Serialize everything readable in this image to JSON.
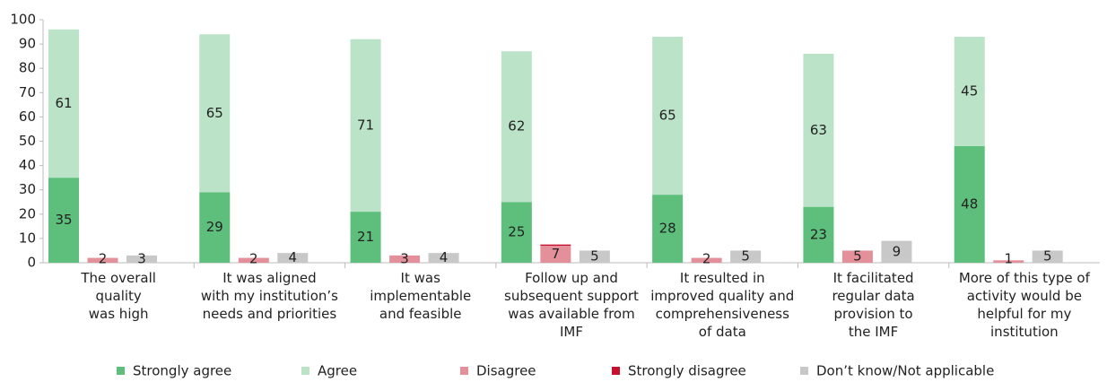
{
  "chart_data": {
    "type": "grouped_stacked_bar",
    "categories": [
      [
        "The overall",
        "quality",
        "was high"
      ],
      [
        "It was aligned",
        "with my institution’s",
        "needs and priorities"
      ],
      [
        "It was",
        "implementable",
        "and  feasible"
      ],
      [
        "Follow up and",
        "subsequent support",
        "was available from",
        "IMF"
      ],
      [
        "It resulted in",
        "improved quality and",
        "comprehensiveness",
        "of data"
      ],
      [
        "It facilitated",
        "regular data",
        "provision to",
        "the IMF"
      ],
      [
        "More of this type of",
        "activity would be",
        "helpful for my",
        "institution"
      ]
    ],
    "series": [
      {
        "name": "Strongly agree",
        "color": "#5dbf7b",
        "stack": 0,
        "show_labels": true,
        "values": [
          35,
          29,
          21,
          25,
          28,
          23,
          48
        ]
      },
      {
        "name": "Agree",
        "color": "#bae3c7",
        "stack": 0,
        "show_labels": true,
        "values": [
          61,
          65,
          71,
          62,
          65,
          63,
          45
        ]
      },
      {
        "name": "Disagree",
        "color": "#e3909b",
        "stack": 1,
        "show_labels": true,
        "values": [
          2,
          2,
          3,
          7,
          2,
          5,
          1
        ]
      },
      {
        "name": "Strongly disagree",
        "color": "#c8102e",
        "stack": 1,
        "show_labels": false,
        "values": [
          0,
          0,
          0,
          0.5,
          0,
          0,
          0
        ]
      },
      {
        "name": "Don’t know/Not applicable",
        "color": "#c8c8c8",
        "stack": 2,
        "show_labels": true,
        "values": [
          3,
          4,
          4,
          5,
          5,
          9,
          5
        ]
      }
    ],
    "ylim": [
      0,
      100
    ],
    "yticks": [
      0,
      10,
      20,
      30,
      40,
      50,
      60,
      70,
      80,
      90,
      100
    ],
    "grid": false,
    "legend": "bottom"
  }
}
